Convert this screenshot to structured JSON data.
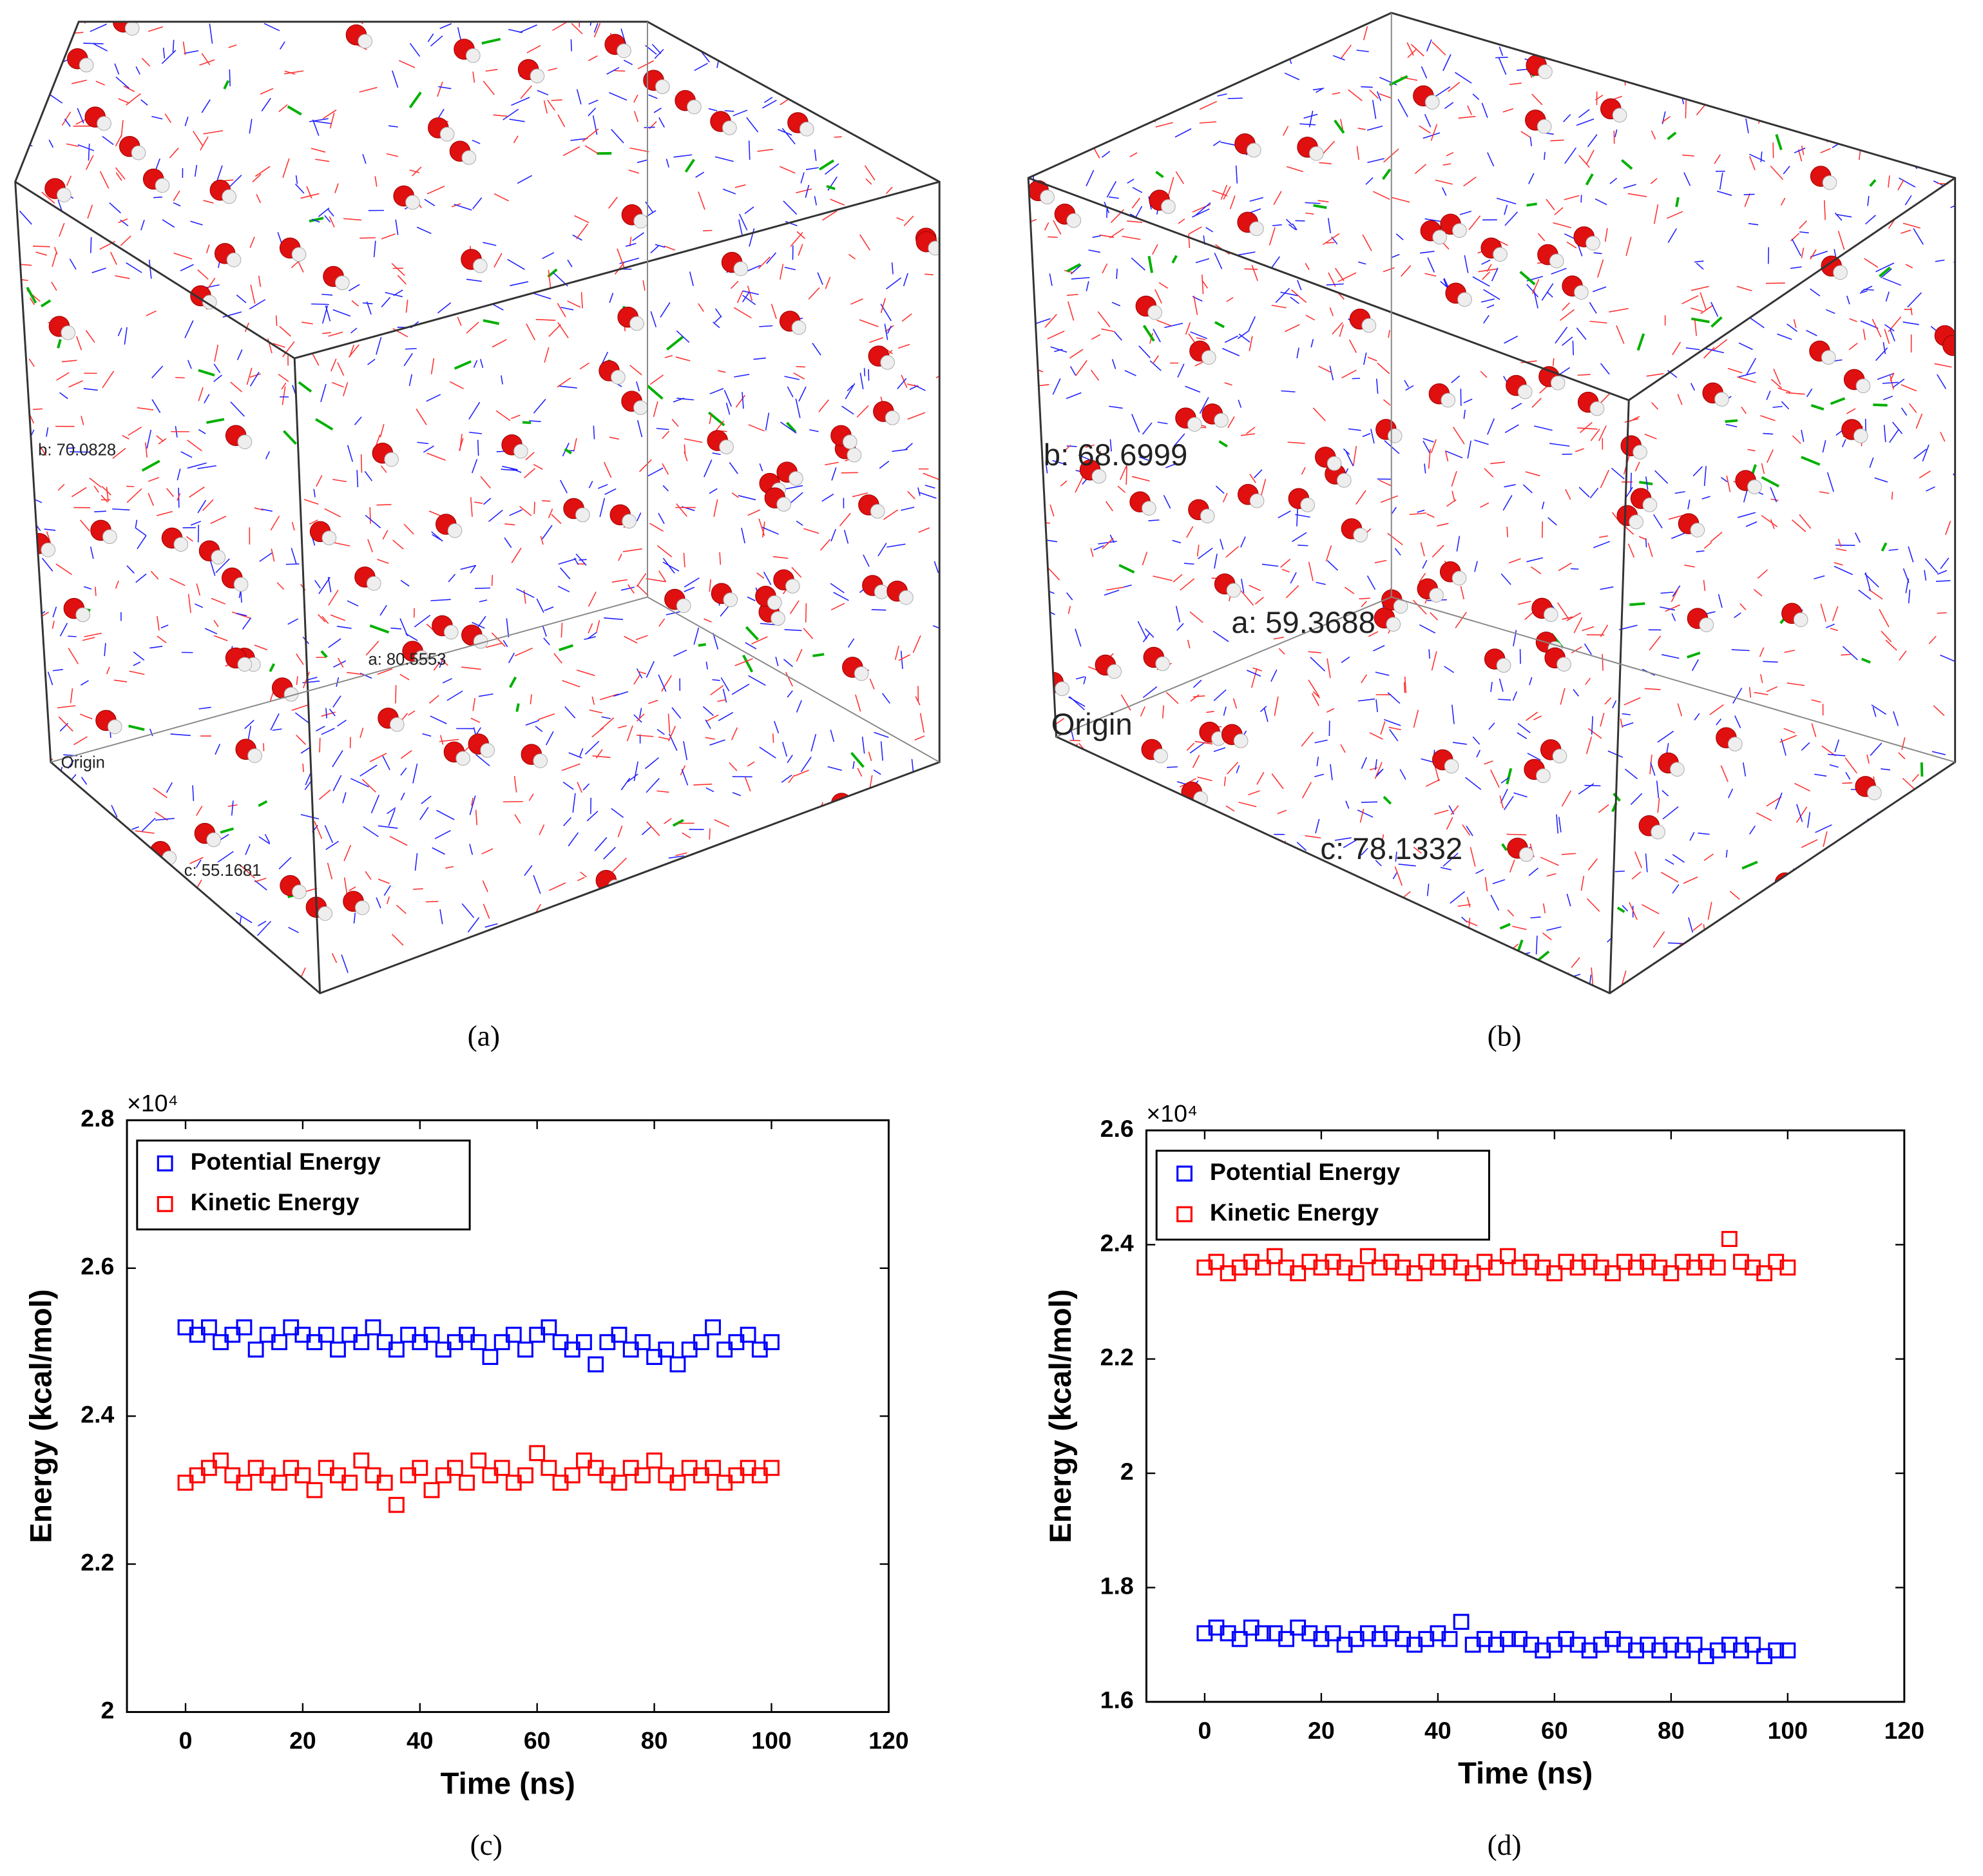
{
  "panels": [
    {
      "label": "(a)",
      "box_labels": [
        "b: 70.0828",
        "a: 80.5553",
        "c: 55.1681",
        "Origin"
      ]
    },
    {
      "label": "(b)",
      "box_labels": [
        "b: 68.6999",
        "a: 59.3688",
        "c: 78.1332",
        "Origin"
      ]
    },
    {
      "label": "(c)"
    },
    {
      "label": "(d)"
    }
  ],
  "chart_data": [
    {
      "type": "scatter",
      "xlabel": "Time (ns)",
      "ylabel": "Energy (kcal/mol)",
      "y_multiplier": "×10⁴",
      "xlim": [
        -10,
        120
      ],
      "xticks": [
        0,
        20,
        40,
        60,
        80,
        100,
        120
      ],
      "ylim": [
        2,
        2.8
      ],
      "yticks": [
        2,
        2.2,
        2.4,
        2.6,
        2.8
      ],
      "legend": "upper left",
      "marker": "square",
      "x": [
        0,
        2,
        4,
        6,
        8,
        10,
        12,
        14,
        16,
        18,
        20,
        22,
        24,
        26,
        28,
        30,
        32,
        34,
        36,
        38,
        40,
        42,
        44,
        46,
        48,
        50,
        52,
        54,
        56,
        58,
        60,
        62,
        64,
        66,
        68,
        70,
        72,
        74,
        76,
        78,
        80,
        82,
        84,
        86,
        88,
        90,
        92,
        94,
        96,
        98,
        100
      ],
      "series": [
        {
          "name": "Potential Energy",
          "color": "#0000ff",
          "values": [
            2.52,
            2.51,
            2.52,
            2.5,
            2.51,
            2.52,
            2.49,
            2.51,
            2.5,
            2.52,
            2.51,
            2.5,
            2.51,
            2.49,
            2.51,
            2.5,
            2.52,
            2.5,
            2.49,
            2.51,
            2.5,
            2.51,
            2.49,
            2.5,
            2.51,
            2.5,
            2.48,
            2.5,
            2.51,
            2.49,
            2.51,
            2.52,
            2.5,
            2.49,
            2.5,
            2.47,
            2.5,
            2.51,
            2.49,
            2.5,
            2.48,
            2.49,
            2.47,
            2.49,
            2.5,
            2.52,
            2.49,
            2.5,
            2.51,
            2.49,
            2.5
          ]
        },
        {
          "name": "Kinetic Energy",
          "color": "#ff0000",
          "values": [
            2.31,
            2.32,
            2.33,
            2.34,
            2.32,
            2.31,
            2.33,
            2.32,
            2.31,
            2.33,
            2.32,
            2.3,
            2.33,
            2.32,
            2.31,
            2.34,
            2.32,
            2.31,
            2.28,
            2.32,
            2.33,
            2.3,
            2.32,
            2.33,
            2.31,
            2.34,
            2.32,
            2.33,
            2.31,
            2.32,
            2.35,
            2.33,
            2.31,
            2.32,
            2.34,
            2.33,
            2.32,
            2.31,
            2.33,
            2.32,
            2.34,
            2.32,
            2.31,
            2.33,
            2.32,
            2.33,
            2.31,
            2.32,
            2.33,
            2.32,
            2.33
          ]
        }
      ]
    },
    {
      "type": "scatter",
      "xlabel": "Time (ns)",
      "ylabel": "Energy (kcal/mol)",
      "y_multiplier": "×10⁴",
      "xlim": [
        -10,
        120
      ],
      "xticks": [
        0,
        20,
        40,
        60,
        80,
        100,
        120
      ],
      "ylim": [
        1.6,
        2.6
      ],
      "yticks": [
        1.6,
        1.8,
        2,
        2.2,
        2.4,
        2.6
      ],
      "legend": "upper left",
      "marker": "square",
      "x": [
        0,
        2,
        4,
        6,
        8,
        10,
        12,
        14,
        16,
        18,
        20,
        22,
        24,
        26,
        28,
        30,
        32,
        34,
        36,
        38,
        40,
        42,
        44,
        46,
        48,
        50,
        52,
        54,
        56,
        58,
        60,
        62,
        64,
        66,
        68,
        70,
        72,
        74,
        76,
        78,
        80,
        82,
        84,
        86,
        88,
        90,
        92,
        94,
        96,
        98,
        100
      ],
      "series": [
        {
          "name": "Potential Energy",
          "color": "#0000ff",
          "values": [
            1.72,
            1.73,
            1.72,
            1.71,
            1.73,
            1.72,
            1.72,
            1.71,
            1.73,
            1.72,
            1.71,
            1.72,
            1.7,
            1.71,
            1.72,
            1.71,
            1.72,
            1.71,
            1.7,
            1.71,
            1.72,
            1.71,
            1.74,
            1.7,
            1.71,
            1.7,
            1.71,
            1.71,
            1.7,
            1.69,
            1.7,
            1.71,
            1.7,
            1.69,
            1.7,
            1.71,
            1.7,
            1.69,
            1.7,
            1.69,
            1.7,
            1.69,
            1.7,
            1.68,
            1.69,
            1.7,
            1.69,
            1.7,
            1.68,
            1.69,
            1.69
          ]
        },
        {
          "name": "Kinetic Energy",
          "color": "#ff0000",
          "values": [
            2.36,
            2.37,
            2.35,
            2.36,
            2.37,
            2.36,
            2.38,
            2.36,
            2.35,
            2.37,
            2.36,
            2.37,
            2.36,
            2.35,
            2.38,
            2.36,
            2.37,
            2.36,
            2.35,
            2.37,
            2.36,
            2.37,
            2.36,
            2.35,
            2.37,
            2.36,
            2.38,
            2.36,
            2.37,
            2.36,
            2.35,
            2.37,
            2.36,
            2.37,
            2.36,
            2.35,
            2.37,
            2.36,
            2.37,
            2.36,
            2.35,
            2.37,
            2.36,
            2.37,
            2.36,
            2.41,
            2.37,
            2.36,
            2.35,
            2.37,
            2.36
          ]
        }
      ]
    }
  ]
}
